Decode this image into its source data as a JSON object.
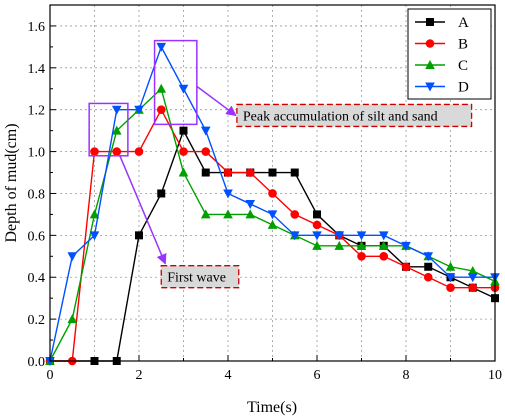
{
  "chart_data": {
    "type": "line",
    "title": "",
    "xlabel": "Time(s)",
    "ylabel": "Depth of mud(cm)",
    "xlim": [
      0,
      10
    ],
    "ylim": [
      0,
      1.7
    ],
    "xticks": [
      0,
      2,
      4,
      6,
      8,
      10
    ],
    "yticks": [
      0.0,
      0.2,
      0.4,
      0.6,
      0.8,
      1.0,
      1.2,
      1.4,
      1.6
    ],
    "xtick_labels": [
      "0",
      "2",
      "4",
      "6",
      "8",
      "10"
    ],
    "ytick_labels": [
      "0.0",
      "0.2",
      "0.4",
      "0.6",
      "0.8",
      "1.0",
      "1.2",
      "1.4",
      "1.6"
    ],
    "grid": true,
    "legend_position": "top-right",
    "series": [
      {
        "name": "A",
        "color": "#000000",
        "marker": "square",
        "x": [
          0,
          1,
          1.5,
          2,
          2.5,
          3,
          3.5,
          4,
          4.5,
          5,
          5.5,
          6,
          6.5,
          7,
          7.5,
          8,
          8.5,
          9,
          9.5,
          10
        ],
        "y": [
          0,
          0,
          0,
          0.6,
          0.8,
          1.1,
          0.9,
          0.9,
          0.9,
          0.9,
          0.9,
          0.7,
          0.6,
          0.55,
          0.55,
          0.45,
          0.45,
          0.4,
          0.35,
          0.3
        ]
      },
      {
        "name": "B",
        "color": "#ff0000",
        "marker": "circle",
        "x": [
          0,
          0.5,
          1,
          1.5,
          2,
          2.5,
          3,
          3.5,
          4,
          4.5,
          5,
          5.5,
          6,
          6.5,
          7,
          7.5,
          8,
          8.5,
          9,
          9.5,
          10
        ],
        "y": [
          0,
          0,
          1.0,
          1.0,
          1.0,
          1.2,
          1.0,
          1.0,
          0.9,
          0.9,
          0.8,
          0.7,
          0.65,
          0.6,
          0.5,
          0.5,
          0.45,
          0.4,
          0.35,
          0.35,
          0.35
        ]
      },
      {
        "name": "C",
        "color": "#00a000",
        "marker": "triangle-up",
        "x": [
          0,
          0.5,
          1,
          1.5,
          2,
          2.5,
          3,
          3.5,
          4,
          4.5,
          5,
          5.5,
          6,
          6.5,
          7,
          7.5,
          8,
          8.5,
          9,
          9.5,
          10
        ],
        "y": [
          0,
          0.2,
          0.7,
          1.1,
          1.2,
          1.3,
          0.9,
          0.7,
          0.7,
          0.7,
          0.65,
          0.6,
          0.55,
          0.55,
          0.55,
          0.55,
          0.55,
          0.5,
          0.45,
          0.43,
          0.38
        ]
      },
      {
        "name": "D",
        "color": "#0050ff",
        "marker": "triangle-down",
        "x": [
          0,
          0.5,
          1,
          1.5,
          2,
          2.5,
          3,
          3.5,
          4,
          4.5,
          5,
          5.5,
          6,
          6.5,
          7,
          7.5,
          8,
          8.5,
          9,
          9.5,
          10
        ],
        "y": [
          0,
          0.5,
          0.6,
          1.2,
          1.2,
          1.5,
          1.3,
          1.1,
          0.8,
          0.75,
          0.7,
          0.6,
          0.6,
          0.6,
          0.6,
          0.6,
          0.55,
          0.5,
          0.4,
          0.4,
          0.4
        ]
      }
    ],
    "annotations": [
      {
        "text": "Peak accumulation of silt and sand",
        "box_x": [
          2.35,
          3.3
        ],
        "box_y": [
          1.13,
          1.53
        ],
        "label_at": [
          4.2,
          1.12
        ]
      },
      {
        "text": "First wave",
        "box_x": [
          0.88,
          1.75
        ],
        "box_y": [
          0.98,
          1.23
        ],
        "label_at": [
          2.5,
          0.35
        ]
      }
    ],
    "annotation_colors": {
      "box": "#9933ff",
      "arrow": "#9933ff",
      "label_border": "#cc0000",
      "label_bg": "#d9d9d9"
    }
  }
}
